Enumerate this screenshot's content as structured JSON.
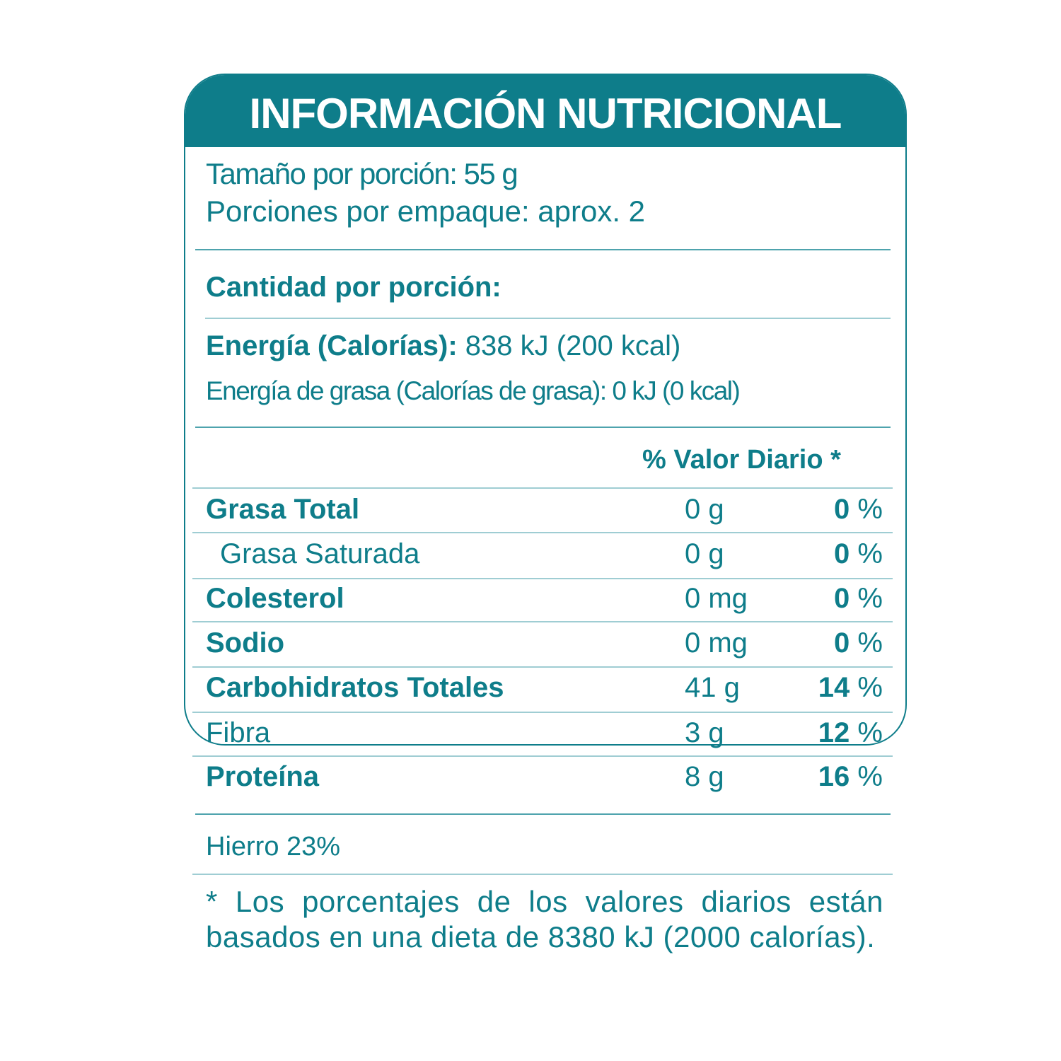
{
  "title": "INFORMACIÓN NUTRICIONAL",
  "serving_size": "Tamaño por porción: 55 g",
  "servings_per_container": "Porciones por empaque: aprox. 2",
  "amount_per_serving": "Cantidad por porción:",
  "energy": {
    "label": "Energía (Calorías):",
    "value": "838 kJ (200 kcal)"
  },
  "energy_fat": "Energía de grasa (Calorías de grasa): 0 kJ (0 kcal)",
  "dv_header": "% Valor  Diario *",
  "nutrients": [
    {
      "name": "Grasa Total",
      "amount": "0 g",
      "dv": "0",
      "unit": "%"
    },
    {
      "name": "Grasa Saturada",
      "amount": "0 g",
      "dv": "0",
      "unit": "%"
    },
    {
      "name": "Colesterol",
      "amount": "0 mg",
      "dv": "0",
      "unit": "%"
    },
    {
      "name": "Sodio",
      "amount": "0 mg",
      "dv": "0",
      "unit": "%"
    },
    {
      "name": "Carbohidratos Totales",
      "amount": "41 g",
      "dv": "14",
      "unit": "%"
    },
    {
      "name": "Fibra",
      "amount": "3 g",
      "dv": "12",
      "unit": "%"
    },
    {
      "name": "Proteína",
      "amount": "8 g",
      "dv": "16",
      "unit": "%"
    }
  ],
  "iron": "Hierro  23%",
  "footnote": "* Los porcentajes de los valores diarios están basados en una dieta de 8380 kJ (2000 calorías).",
  "colors": {
    "brand": "#0e7d8a",
    "divider": "#9fcdd3"
  }
}
